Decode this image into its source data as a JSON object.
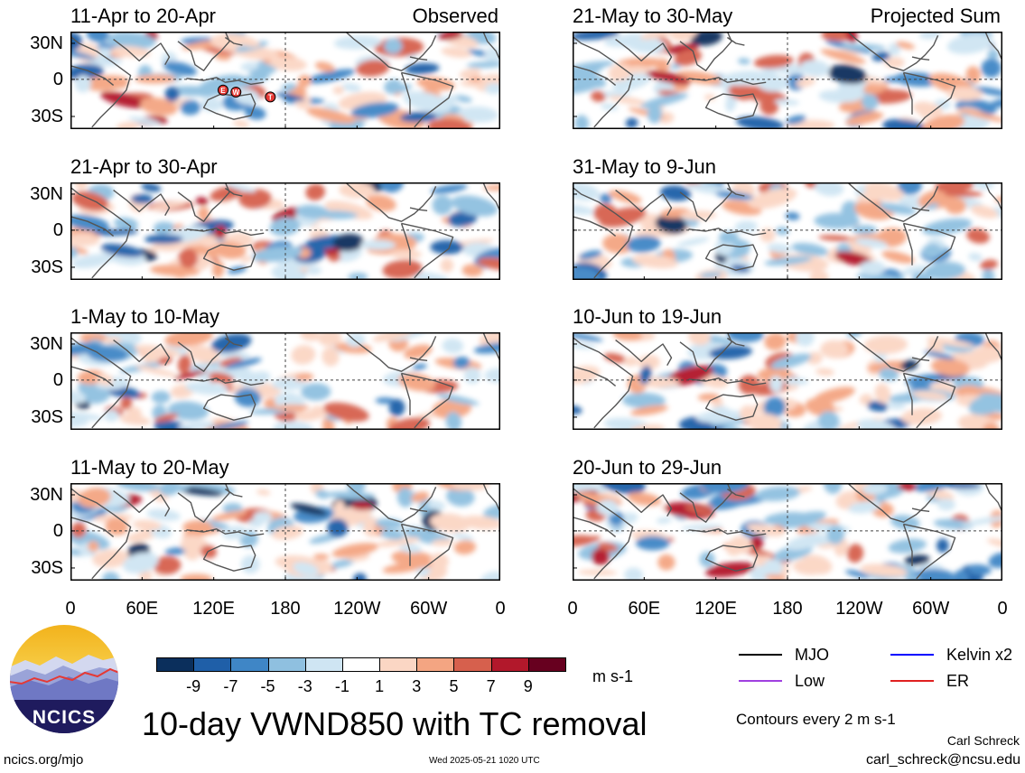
{
  "figure": {
    "main_title": "10-day VWND850 with TC removal",
    "unit": "m s-1",
    "contour_note": "Contours every 2 m s-1",
    "author": "Carl Schreck",
    "email": "carl_schreck@ncsu.edu",
    "site": "ncics.org/mjo",
    "timestamp": "Wed 2025-05-21 1020 UTC",
    "logo_text": "NCICS"
  },
  "chart_data": {
    "type": "heatmap",
    "variable": "VWND850",
    "x_ticks": [
      "0",
      "60E",
      "120E",
      "180",
      "120W",
      "60W",
      "0"
    ],
    "y_ticks": [
      "30N",
      "0",
      "30S"
    ],
    "panels": [
      {
        "label": "11-Apr to 20-Apr",
        "tag": "Observed"
      },
      {
        "label": "21-May to 30-May",
        "tag": "Projected Sum"
      },
      {
        "label": "21-Apr to 30-Apr",
        "tag": ""
      },
      {
        "label": "31-May to 9-Jun",
        "tag": ""
      },
      {
        "label": "1-May to 10-May",
        "tag": ""
      },
      {
        "label": "10-Jun to 19-Jun",
        "tag": ""
      },
      {
        "label": "11-May to 20-May",
        "tag": ""
      },
      {
        "label": "20-Jun to 29-Jun",
        "tag": ""
      }
    ],
    "colorbar": {
      "labels": [
        "-9",
        "-7",
        "-5",
        "-3",
        "-1",
        "1",
        "3",
        "5",
        "7",
        "9"
      ],
      "colors": [
        "#0b2f5c",
        "#1f5fa8",
        "#3f86c6",
        "#8fc0e0",
        "#cfe5f3",
        "#ffffff",
        "#fbd6c4",
        "#f4a582",
        "#d6604d",
        "#b2182b",
        "#67001f"
      ]
    },
    "legend": [
      {
        "name": "MJO",
        "color": "#000000"
      },
      {
        "name": "Kelvin x2",
        "color": "#0000ff"
      },
      {
        "name": "Low",
        "color": "#a040e0"
      },
      {
        "name": "ER",
        "color": "#e02020"
      }
    ],
    "tc_markers": [
      "E",
      "W",
      "T"
    ]
  }
}
